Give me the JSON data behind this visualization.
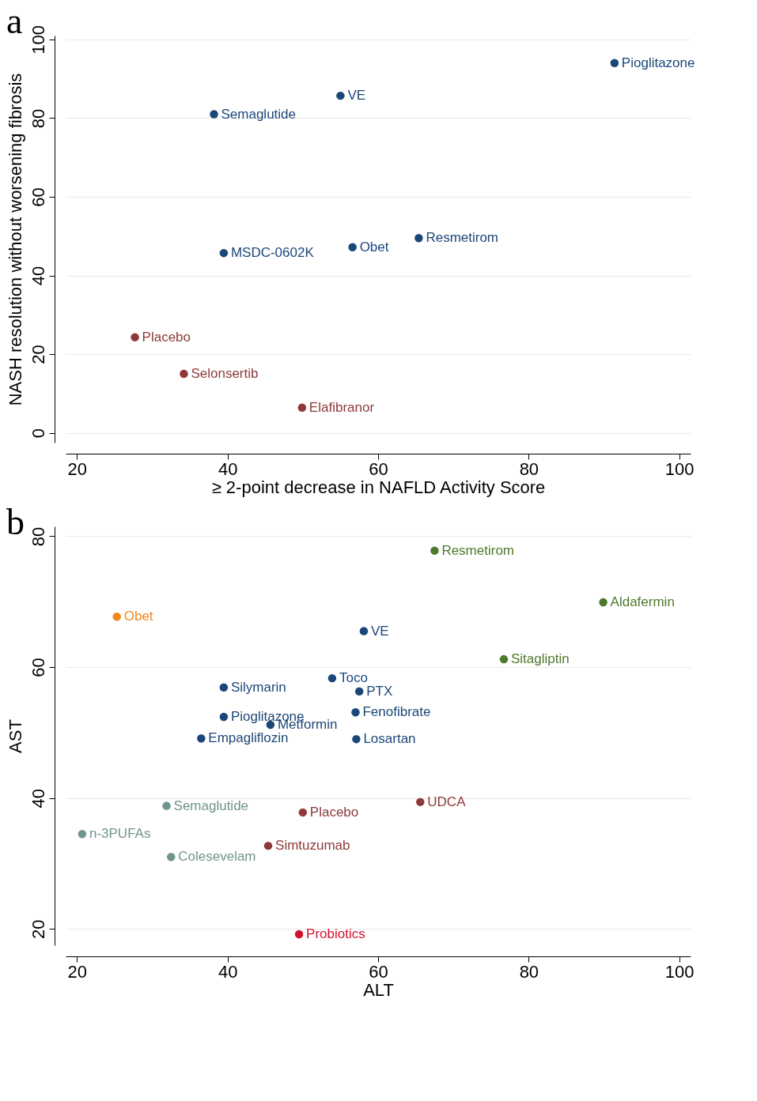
{
  "chart_data": [
    {
      "type": "scatter",
      "title": "a",
      "xlabel": "≥ 2-point decrease in NAFLD Activity Score",
      "ylabel": "NASH resolution without worsening fibrosis",
      "xlim": [
        18.5,
        101.5
      ],
      "xticks": [
        20,
        40,
        60,
        80,
        100
      ],
      "ylim": [
        -2.5,
        101
      ],
      "yticks": [
        0,
        20,
        40,
        60,
        80,
        100
      ],
      "grid": "y",
      "marker": "circle",
      "series": [
        {
          "name": "Pioglitazone",
          "color": "#1b4679",
          "x": [
            91.4
          ],
          "values": [
            94.0
          ]
        },
        {
          "name": "VE",
          "color": "#1b4679",
          "x": [
            55.0
          ],
          "values": [
            85.7
          ]
        },
        {
          "name": "Semaglutide",
          "color": "#1b4679",
          "x": [
            38.2
          ],
          "values": [
            81.0
          ]
        },
        {
          "name": "Resmetirom",
          "color": "#1b4679",
          "x": [
            65.4
          ],
          "values": [
            49.5
          ]
        },
        {
          "name": "Obet",
          "color": "#1b4679",
          "x": [
            56.6
          ],
          "values": [
            47.2
          ]
        },
        {
          "name": "MSDC-0602K",
          "color": "#1b4679",
          "x": [
            39.5
          ],
          "values": [
            45.7
          ]
        },
        {
          "name": "Placebo",
          "color": "#8f3838",
          "x": [
            27.7
          ],
          "values": [
            24.3
          ]
        },
        {
          "name": "Selonsertib",
          "color": "#8f3838",
          "x": [
            34.2
          ],
          "values": [
            15.0
          ]
        },
        {
          "name": "Elafibranor",
          "color": "#8f3838",
          "x": [
            49.9
          ],
          "values": [
            6.4
          ]
        }
      ]
    },
    {
      "type": "scatter",
      "title": "b",
      "xlabel": "ALT",
      "ylabel": "AST",
      "xlim": [
        18.5,
        101.5
      ],
      "xticks": [
        20,
        40,
        60,
        80,
        100
      ],
      "ylim": [
        17.5,
        81.5
      ],
      "yticks": [
        20,
        40,
        60,
        80
      ],
      "grid": "y",
      "marker": "circle",
      "series": [
        {
          "name": "Resmetirom",
          "color": "#4e7a2b",
          "x": [
            67.5
          ],
          "values": [
            77.8
          ]
        },
        {
          "name": "Aldafermin",
          "color": "#4e7a2b",
          "x": [
            89.9
          ],
          "values": [
            69.9
          ]
        },
        {
          "name": "Obet",
          "color": "#f0871a",
          "x": [
            25.3
          ],
          "values": [
            67.7
          ]
        },
        {
          "name": "VE",
          "color": "#1b4679",
          "x": [
            58.1
          ],
          "values": [
            65.5
          ]
        },
        {
          "name": "Sitagliptin",
          "color": "#4e7a2b",
          "x": [
            76.7
          ],
          "values": [
            61.2
          ]
        },
        {
          "name": "Toco",
          "color": "#1b4679",
          "x": [
            53.9
          ],
          "values": [
            58.3
          ]
        },
        {
          "name": "Silymarin",
          "color": "#1b4679",
          "x": [
            39.5
          ],
          "values": [
            56.9
          ]
        },
        {
          "name": "PTX",
          "color": "#1b4679",
          "x": [
            57.5
          ],
          "values": [
            56.3
          ]
        },
        {
          "name": "Fenofibrate",
          "color": "#1b4679",
          "x": [
            57.0
          ],
          "values": [
            53.1
          ]
        },
        {
          "name": "Pioglitazone",
          "color": "#1b4679",
          "x": [
            39.5
          ],
          "values": [
            52.4
          ]
        },
        {
          "name": "Metformin",
          "color": "#1b4679",
          "x": [
            45.7
          ],
          "values": [
            51.2
          ]
        },
        {
          "name": "Empagliflozin",
          "color": "#1b4679",
          "x": [
            36.5
          ],
          "values": [
            49.1
          ]
        },
        {
          "name": "Losartan",
          "color": "#1b4679",
          "x": [
            57.1
          ],
          "values": [
            49.0
          ]
        },
        {
          "name": "UDCA",
          "color": "#8f3838",
          "x": [
            65.6
          ],
          "values": [
            39.4
          ]
        },
        {
          "name": "Semaglutide",
          "color": "#6f958f",
          "x": [
            31.9
          ],
          "values": [
            38.8
          ]
        },
        {
          "name": "Placebo",
          "color": "#8f3838",
          "x": [
            50.0
          ],
          "values": [
            37.8
          ]
        },
        {
          "name": "n-3PUFAs",
          "color": "#6f958f",
          "x": [
            20.7
          ],
          "values": [
            34.5
          ]
        },
        {
          "name": "Simtuzumab",
          "color": "#8f3838",
          "x": [
            45.4
          ],
          "values": [
            32.7
          ]
        },
        {
          "name": "Colesevelam",
          "color": "#6f958f",
          "x": [
            32.5
          ],
          "values": [
            31.0
          ]
        },
        {
          "name": "Probiotics",
          "color": "#d2102c",
          "x": [
            49.5
          ],
          "values": [
            19.2
          ]
        }
      ]
    }
  ]
}
